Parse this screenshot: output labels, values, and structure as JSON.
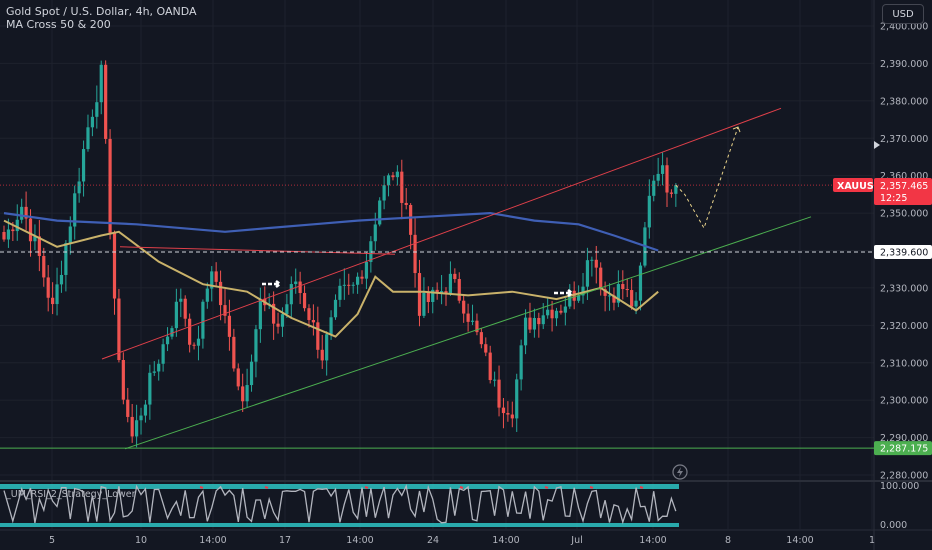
{
  "header": {
    "title": "Gold Spot / U.S. Dollar, 4h, OANDA",
    "indicator": "MA Cross 50 & 200",
    "currency_button": "USD"
  },
  "price_badges": {
    "symbol": "XAUUSD",
    "price": "2,357.465",
    "countdown": "12:25",
    "level_1": "2,339.600",
    "level_2": "2,287.175"
  },
  "oscillator": {
    "label": "_UM_RSI_2_Strategy_Lower",
    "max_label": "100.000",
    "min_label": "0.000"
  },
  "colors": {
    "background": "#131722",
    "up": "#26a69a",
    "down": "#ef5350",
    "ma_fast": "#c9b26a",
    "ma_slow": "#3f5fb5",
    "channel_upper": "#e0404a",
    "channel_lower": "#4caf50",
    "price_badge": "#f23645",
    "support_badge": "#4caf50",
    "rsi_band": "#2ec4c4"
  },
  "chart_data": {
    "type": "candlestick",
    "symbol": "XAUUSD",
    "timeframe": "4h",
    "ylim": [
      2280,
      2400
    ],
    "y_ticks": [
      "2,280.000",
      "2,290.000",
      "2,300.000",
      "2,310.000",
      "2,320.000",
      "2,330.000",
      "2,340.000",
      "2,350.000",
      "2,360.000",
      "2,370.000",
      "2,380.000",
      "2,390.000",
      "2,400.000"
    ],
    "x_ticks": [
      "5",
      "10",
      "14:00",
      "17",
      "14:00",
      "24",
      "14:00",
      "Jul",
      "14:00",
      "8",
      "14:00",
      "1"
    ],
    "candle_count": 120,
    "anchor_points": [
      [
        0,
        2343
      ],
      [
        4,
        2352
      ],
      [
        8,
        2338
      ],
      [
        11,
        2324
      ],
      [
        15,
        2348
      ],
      [
        19,
        2373
      ],
      [
        22,
        2387
      ],
      [
        24,
        2347
      ],
      [
        26,
        2308
      ],
      [
        29,
        2290
      ],
      [
        34,
        2308
      ],
      [
        40,
        2328
      ],
      [
        43,
        2312
      ],
      [
        47,
        2336
      ],
      [
        51,
        2316
      ],
      [
        54,
        2300
      ],
      [
        58,
        2326
      ],
      [
        62,
        2320
      ],
      [
        66,
        2332
      ],
      [
        69,
        2323
      ],
      [
        72,
        2312
      ],
      [
        76,
        2328
      ],
      [
        79,
        2330
      ],
      [
        82,
        2338
      ],
      [
        85,
        2354
      ],
      [
        88,
        2361
      ],
      [
        91,
        2353
      ],
      [
        94,
        2325
      ],
      [
        98,
        2328
      ],
      [
        101,
        2332
      ],
      [
        104,
        2326
      ],
      [
        108,
        2314
      ],
      [
        112,
        2300
      ],
      [
        115,
        2298
      ],
      [
        118,
        2320
      ],
      [
        122,
        2324
      ],
      [
        126,
        2325
      ],
      [
        130,
        2330
      ],
      [
        133,
        2340
      ],
      [
        136,
        2328
      ],
      [
        140,
        2330
      ],
      [
        143,
        2324
      ],
      [
        146,
        2356
      ],
      [
        148,
        2363
      ],
      [
        150,
        2358
      ],
      [
        152,
        2357.465
      ]
    ],
    "ma_fast": [
      [
        0,
        2348
      ],
      [
        12,
        2341
      ],
      [
        22,
        2344
      ],
      [
        26,
        2345
      ],
      [
        35,
        2337
      ],
      [
        45,
        2331
      ],
      [
        55,
        2329
      ],
      [
        65,
        2322
      ],
      [
        75,
        2317
      ],
      [
        80,
        2323
      ],
      [
        84,
        2333
      ],
      [
        88,
        2329
      ],
      [
        95,
        2329
      ],
      [
        105,
        2328
      ],
      [
        115,
        2329
      ],
      [
        125,
        2327
      ],
      [
        135,
        2330
      ],
      [
        143,
        2324
      ],
      [
        148,
        2329
      ]
    ],
    "ma_slow": [
      [
        0,
        2350
      ],
      [
        12,
        2348
      ],
      [
        30,
        2347
      ],
      [
        50,
        2345
      ],
      [
        60,
        2346
      ],
      [
        70,
        2347
      ],
      [
        80,
        2348
      ],
      [
        95,
        2349
      ],
      [
        110,
        2350
      ],
      [
        120,
        2348
      ],
      [
        130,
        2347
      ],
      [
        138,
        2344
      ],
      [
        148,
        2340
      ]
    ],
    "levels": [
      2339.6,
      2287.175
    ],
    "upper_channel": [
      [
        2311,
        2370
      ],
      [
        2345,
        2378
      ]
    ],
    "lower_channel": [
      [
        2287,
        2298
      ],
      [
        2354,
        2303
      ]
    ],
    "projection": [
      [
        2357.465,
        2355,
        2346,
        2373
      ]
    ],
    "rsi_range": [
      0,
      100
    ]
  }
}
